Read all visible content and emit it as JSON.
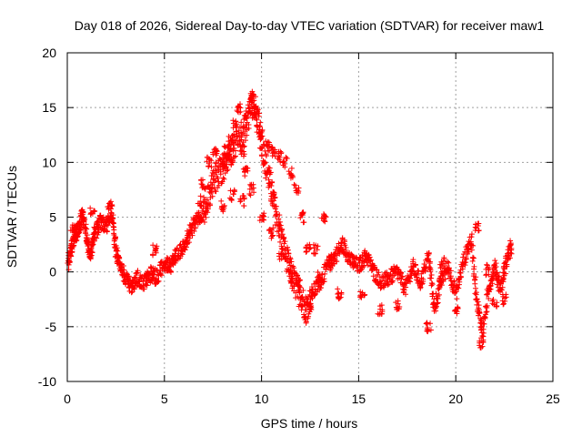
{
  "chart_data": {
    "type": "scatter",
    "title": "Day 018 of 2026, Sidereal Day-to-day VTEC variation (SDTVAR) for receiver maw1",
    "xlabel": "GPS time / hours",
    "ylabel": "SDTVAR / TECUs",
    "xlim": [
      0,
      25
    ],
    "ylim": [
      -10,
      20
    ],
    "xticks": [
      0,
      5,
      10,
      15,
      20,
      25
    ],
    "yticks": [
      -10,
      -5,
      0,
      5,
      10,
      15,
      20
    ],
    "xtick_labels": [
      "0",
      "5",
      "10",
      "15",
      "20",
      "25"
    ],
    "ytick_labels": [
      "-10",
      "-5",
      "0",
      "5",
      "10",
      "15",
      "20"
    ],
    "grid": true,
    "marker": "+",
    "color": "#ff0000",
    "series": [
      {
        "name": "SDTVAR",
        "trace": [
          [
            0.0,
            0.5
          ],
          [
            0.2,
            2.0
          ],
          [
            0.4,
            3.2
          ],
          [
            0.6,
            4.0
          ],
          [
            0.8,
            5.2
          ],
          [
            1.0,
            3.0
          ],
          [
            1.2,
            1.5
          ],
          [
            1.4,
            3.5
          ],
          [
            1.7,
            4.5
          ],
          [
            2.0,
            4.2
          ],
          [
            2.3,
            5.5
          ],
          [
            2.5,
            2.0
          ],
          [
            2.7,
            0.5
          ],
          [
            3.0,
            -0.5
          ],
          [
            3.3,
            -1.5
          ],
          [
            3.6,
            -0.5
          ],
          [
            4.0,
            -1.0
          ],
          [
            4.3,
            -0.2
          ],
          [
            4.6,
            -0.5
          ],
          [
            5.0,
            0.8
          ],
          [
            5.3,
            0.5
          ],
          [
            5.6,
            1.5
          ],
          [
            6.0,
            2.2
          ],
          [
            6.3,
            3.5
          ],
          [
            6.6,
            4.5
          ],
          [
            7.0,
            5.5
          ],
          [
            7.3,
            7.0
          ],
          [
            7.6,
            8.5
          ],
          [
            8.0,
            9.5
          ],
          [
            8.3,
            10.5
          ],
          [
            8.6,
            11.5
          ],
          [
            9.0,
            12.5
          ],
          [
            9.3,
            14.0
          ],
          [
            9.6,
            15.5
          ],
          [
            9.9,
            13.0
          ],
          [
            10.2,
            10.0
          ],
          [
            10.5,
            7.5
          ],
          [
            10.8,
            5.0
          ],
          [
            11.1,
            2.5
          ],
          [
            11.4,
            0.5
          ],
          [
            11.7,
            -1.0
          ],
          [
            12.0,
            -2.0
          ],
          [
            12.3,
            -3.5
          ],
          [
            12.6,
            -2.0
          ],
          [
            13.0,
            -1.0
          ],
          [
            13.4,
            0.5
          ],
          [
            13.8,
            1.5
          ],
          [
            14.2,
            2.5
          ],
          [
            14.6,
            1.0
          ],
          [
            15.0,
            0.5
          ],
          [
            15.4,
            1.5
          ],
          [
            15.8,
            0.0
          ],
          [
            16.2,
            -1.0
          ],
          [
            16.6,
            -0.5
          ],
          [
            17.0,
            0.0
          ],
          [
            17.4,
            -1.5
          ],
          [
            17.8,
            0.5
          ],
          [
            18.2,
            -1.0
          ],
          [
            18.6,
            1.5
          ],
          [
            18.9,
            -3.5
          ],
          [
            19.2,
            -1.0
          ],
          [
            19.6,
            0.5
          ],
          [
            20.0,
            -2.0
          ],
          [
            20.4,
            1.0
          ],
          [
            20.8,
            3.0
          ],
          [
            21.1,
            -3.0
          ],
          [
            21.4,
            -5.5
          ],
          [
            21.7,
            -1.5
          ],
          [
            22.0,
            0.5
          ],
          [
            22.3,
            -1.5
          ],
          [
            22.6,
            1.0
          ],
          [
            22.9,
            2.5
          ]
        ],
        "envelope_points": [
          [
            7.3,
            10.0
          ],
          [
            7.6,
            10.8
          ],
          [
            8.0,
            9.8
          ],
          [
            8.2,
            11.0
          ],
          [
            8.4,
            12.0
          ],
          [
            8.6,
            13.5
          ],
          [
            8.8,
            15.0
          ],
          [
            9.0,
            11.0
          ],
          [
            9.2,
            9.0
          ],
          [
            9.5,
            15.8
          ],
          [
            9.7,
            14.5
          ],
          [
            10.0,
            12.5
          ],
          [
            10.3,
            11.5
          ],
          [
            10.6,
            11.0
          ],
          [
            10.9,
            10.5
          ],
          [
            11.2,
            10.0
          ],
          [
            11.5,
            9.0
          ],
          [
            11.8,
            7.5
          ],
          [
            12.1,
            5.0
          ],
          [
            12.4,
            2.0
          ],
          [
            8.0,
            6.0
          ],
          [
            8.5,
            7.0
          ],
          [
            9.0,
            6.5
          ],
          [
            9.5,
            7.5
          ],
          [
            10.0,
            5.0
          ],
          [
            10.5,
            3.5
          ],
          [
            11.0,
            1.5
          ],
          [
            11.5,
            -0.5
          ],
          [
            12.0,
            -1.2
          ],
          [
            12.5,
            -3.0
          ],
          [
            13.0,
            -0.5
          ],
          [
            13.5,
            1.0
          ],
          [
            13.2,
            5.0
          ],
          [
            12.8,
            2.0
          ],
          [
            1.3,
            5.5
          ],
          [
            0.3,
            3.8
          ],
          [
            2.2,
            6.0
          ],
          [
            4.5,
            2.0
          ],
          [
            6.8,
            6.5
          ],
          [
            7.0,
            8.0
          ],
          [
            18.6,
            -5.0
          ],
          [
            21.3,
            -6.5
          ],
          [
            21.1,
            4.0
          ],
          [
            16.1,
            -3.5
          ],
          [
            17.0,
            -3.0
          ],
          [
            14.0,
            -2.0
          ],
          [
            15.2,
            -2.0
          ],
          [
            20.0,
            -3.5
          ],
          [
            22.5,
            -2.5
          ],
          [
            19.3,
            0.8
          ],
          [
            22.0,
            -2.8
          ],
          [
            21.6,
            0.2
          ]
        ]
      }
    ]
  }
}
